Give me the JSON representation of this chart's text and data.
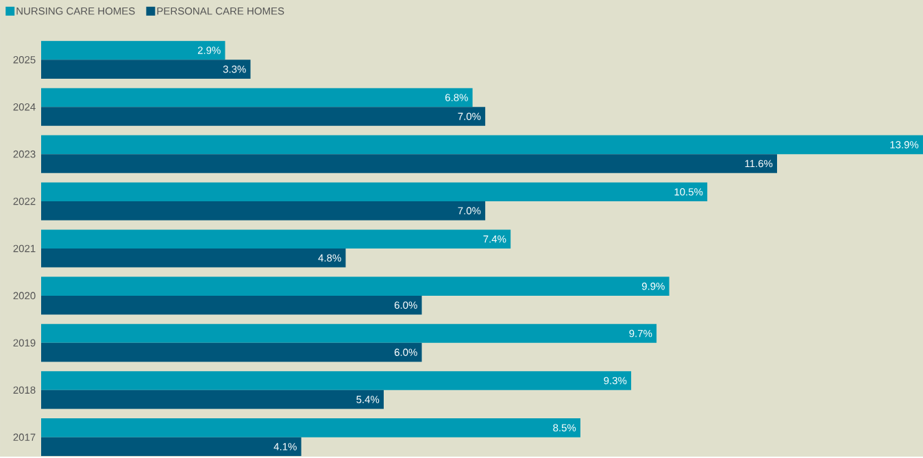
{
  "chart_data": {
    "type": "bar",
    "orientation": "horizontal",
    "legend": "top left",
    "categories": [
      "2025",
      "2024",
      "2023",
      "2022",
      "2021",
      "2020",
      "2019",
      "2018",
      "2017"
    ],
    "series": [
      {
        "name": "NURSING CARE HOMES",
        "color": "#009bb4",
        "values": [
          2.9,
          6.8,
          13.9,
          10.5,
          7.4,
          9.9,
          9.7,
          9.3,
          8.5
        ],
        "value_labels": [
          "2.9%",
          "6.8%",
          "13.9%",
          "10.5%",
          "7.4%",
          "9.9%",
          "9.7%",
          "9.3%",
          "8.5%"
        ]
      },
      {
        "name": "PERSONAL CARE HOMES",
        "color": "#00567a",
        "values": [
          3.3,
          7.0,
          11.6,
          7.0,
          4.8,
          6.0,
          6.0,
          5.4,
          4.1
        ],
        "value_labels": [
          "3.3%",
          "7.0%",
          "11.6%",
          "7.0%",
          "4.8%",
          "6.0%",
          "6.0%",
          "5.4%",
          "4.1%"
        ]
      }
    ]
  }
}
